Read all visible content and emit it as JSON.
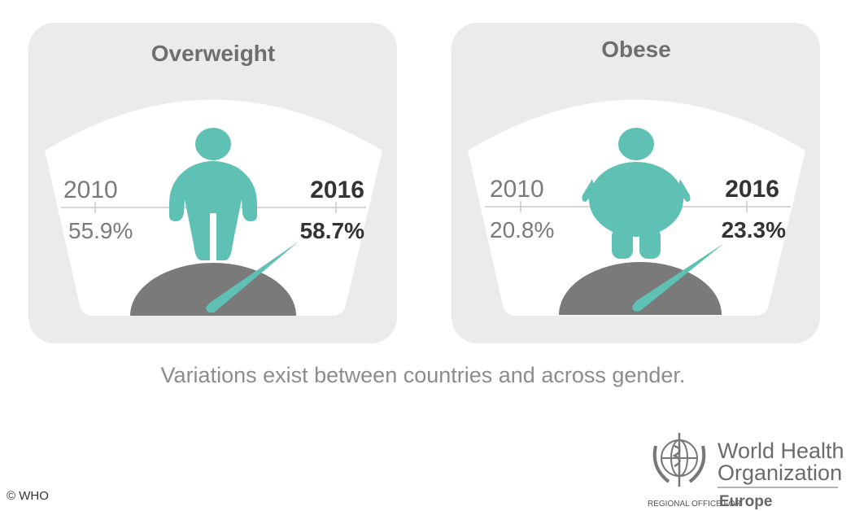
{
  "colors": {
    "panel": "#ebebeb",
    "teal": "#5ec1b3",
    "gauge": "#7a7a7a"
  },
  "panels": [
    {
      "title": "Overweight",
      "year_start": "2010",
      "value_start": "55.9%",
      "year_end": "2016",
      "value_end": "58.7%",
      "figure_icon": "overweight-person-icon"
    },
    {
      "title": "Obese",
      "year_start": "2010",
      "value_start": "20.8%",
      "year_end": "2016",
      "value_end": "23.3%",
      "figure_icon": "obese-person-icon"
    }
  ],
  "caption": "Variations exist between countries and across gender.",
  "copyright": "© WHO",
  "logo": {
    "line1": "World Health",
    "line2": "Organization",
    "regional": "REGIONAL OFFICE FOR",
    "region": "Europe"
  }
}
